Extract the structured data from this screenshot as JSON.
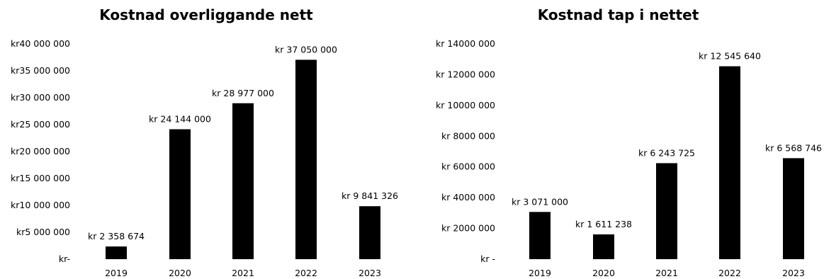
{
  "chart_data": [
    {
      "type": "bar",
      "title": "Kostnad overliggande nett",
      "categories": [
        "2019",
        "2020",
        "2021",
        "2022",
        "2023"
      ],
      "values": [
        2358674,
        24144000,
        28977000,
        37050000,
        9841326
      ],
      "data_labels": [
        "kr 2 358 674",
        "kr 24 144 000",
        "kr 28 977 000",
        "kr 37 050 000",
        "kr 9 841 326"
      ],
      "y_ticks": [
        0,
        5000000,
        10000000,
        15000000,
        20000000,
        25000000,
        30000000,
        35000000,
        40000000
      ],
      "y_tick_labels": [
        "kr-",
        "kr5 000 000",
        "kr10 000 000",
        "kr15 000 000",
        "kr20 000 000",
        "kr25 000 000",
        "kr30 000 000",
        "kr35 000 000",
        "kr40 000 000"
      ],
      "ylim": [
        0,
        40000000
      ],
      "grid": false,
      "bar_color": "#000000"
    },
    {
      "type": "bar",
      "title": "Kostnad tap i nettet",
      "categories": [
        "2019",
        "2020",
        "2021",
        "2022",
        "2023"
      ],
      "values": [
        3071000,
        1611238,
        6243725,
        12545640,
        6568746
      ],
      "data_labels": [
        "kr 3 071 000",
        "kr 1 611 238",
        "kr 6 243 725",
        "kr 12 545 640",
        "kr 6 568 746"
      ],
      "y_ticks": [
        0,
        2000000,
        4000000,
        6000000,
        8000000,
        10000000,
        12000000,
        14000000
      ],
      "y_tick_labels": [
        "kr -",
        "kr 2000 000",
        "kr 4000 000",
        "kr 6000 000",
        "kr 8000 000",
        "kr 10000 000",
        "kr 12000 000",
        "kr 14000 000"
      ],
      "ylim": [
        0,
        14000000
      ],
      "grid": false,
      "bar_color": "#000000"
    }
  ]
}
